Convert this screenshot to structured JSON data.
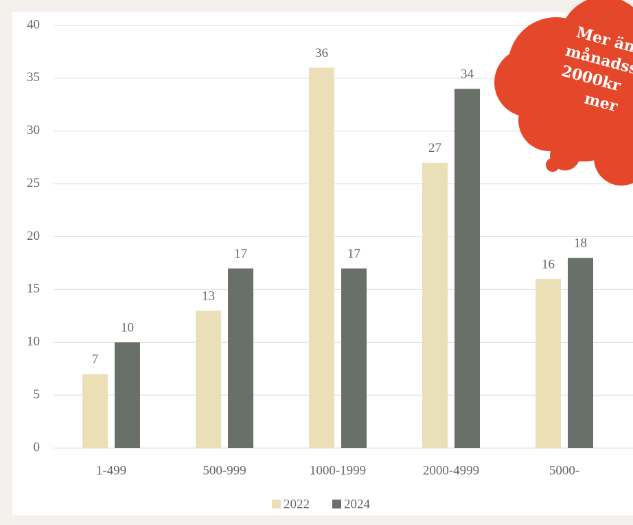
{
  "chart_data": {
    "type": "bar",
    "categories": [
      "1-499",
      "500-999",
      "1000-1999",
      "2000-4999",
      "5000-"
    ],
    "series": [
      {
        "name": "2022",
        "color": "#ebdfb7",
        "values": [
          7,
          13,
          36,
          27,
          16
        ]
      },
      {
        "name": "2024",
        "color": "#687069",
        "values": [
          10,
          17,
          17,
          34,
          18
        ]
      }
    ],
    "ylim": [
      0,
      40
    ],
    "yticks": [
      0,
      5,
      10,
      15,
      20,
      25,
      30,
      35,
      40
    ],
    "grid": true,
    "legend": "bottom",
    "annotation": [
      "Mer än h",
      "månadss",
      "2000kr",
      "mer"
    ],
    "annotation_color": "#e5472a"
  }
}
